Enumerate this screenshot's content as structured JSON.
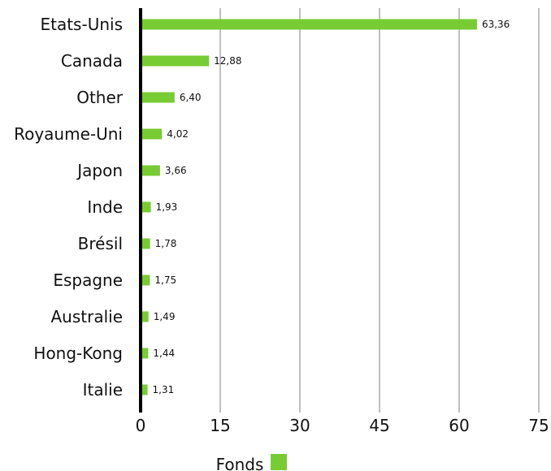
{
  "chart_data": {
    "type": "bar",
    "orientation": "horizontal",
    "categories": [
      "Etats-Unis",
      "Canada",
      "Other",
      "Royaume-Uni",
      "Japon",
      "Inde",
      "Brésil",
      "Espagne",
      "Australie",
      "Hong-Kong",
      "Italie"
    ],
    "series": [
      {
        "name": "Fonds",
        "values": [
          63.36,
          12.88,
          6.4,
          4.02,
          3.66,
          1.93,
          1.78,
          1.75,
          1.49,
          1.44,
          1.31
        ],
        "value_labels": [
          "63,36",
          "12,88",
          "6,40",
          "4,02",
          "3,66",
          "1,93",
          "1,78",
          "1,75",
          "1,49",
          "1,44",
          "1,31"
        ],
        "color": "#77cc33"
      }
    ],
    "xlim": [
      0,
      75
    ],
    "x_ticks": [
      0,
      15,
      30,
      45,
      60,
      75
    ],
    "grid": "vertical",
    "legend_position": "bottom",
    "colors": {
      "bar": "#77cc33",
      "grid": "#bfbfbf",
      "axis": "#000000",
      "text": "#111111"
    }
  }
}
